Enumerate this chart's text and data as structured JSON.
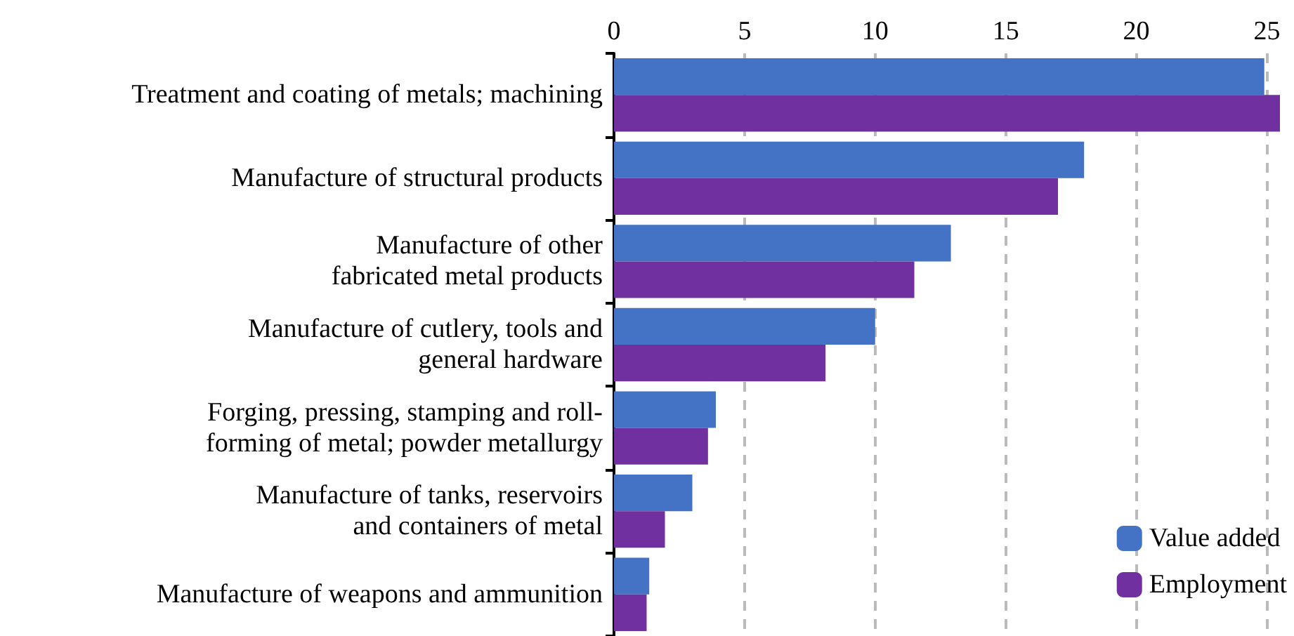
{
  "chart_data": {
    "type": "bar",
    "orientation": "horizontal",
    "categories": [
      "Treatment and coating of metals; machining",
      "Manufacture of structural products",
      "Manufacture of other\nfabricated metal products",
      "Manufacture of cutlery, tools and\ngeneral hardware",
      "Forging, pressing, stamping and roll-\nforming of metal; powder metallurgy",
      "Manufacture of tanks, reservoirs\nand containers of metal",
      "Manufacture of weapons and ammunition"
    ],
    "series": [
      {
        "name": "Value added",
        "color": "#4472c4",
        "values": [
          24.9,
          18,
          12.9,
          10,
          3.9,
          3,
          1.35
        ]
      },
      {
        "name": "Employment",
        "color": "#7030a0",
        "values": [
          25.5,
          17,
          11.5,
          8.1,
          3.6,
          1.95,
          1.25
        ]
      }
    ],
    "xlim": [
      0,
      25.5
    ],
    "xticks": [
      0,
      5,
      10,
      15,
      20,
      25
    ],
    "grid": "x",
    "legend": "bottom right"
  }
}
